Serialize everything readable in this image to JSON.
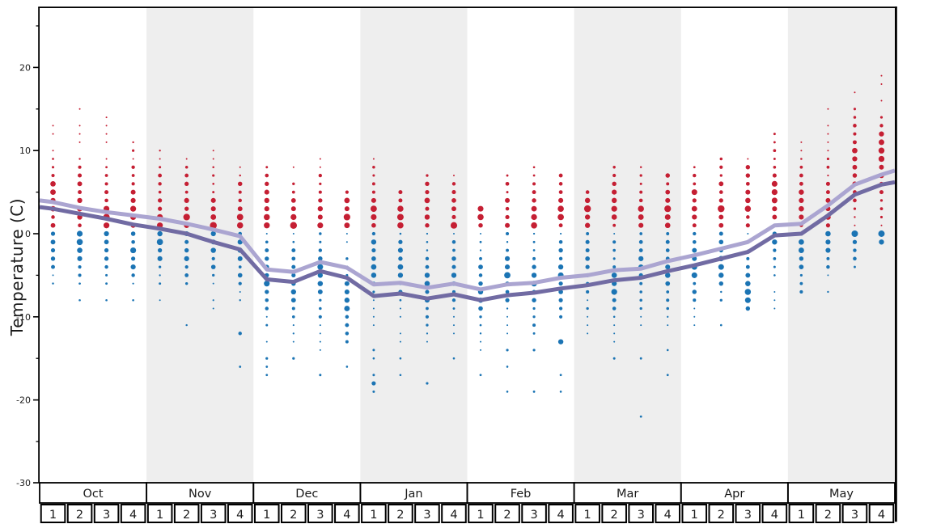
{
  "chart_data": {
    "type": "scatter",
    "title": "",
    "ylabel": "Temperature (C)",
    "legend": "none",
    "grid": "off",
    "y_axis": {
      "min": -30,
      "max": 27,
      "major_ticks": [
        20,
        10,
        0,
        -10,
        -20,
        -30
      ],
      "minor_ticks": [
        25,
        15,
        5,
        -5,
        -15,
        -25
      ],
      "unit": "C"
    },
    "x_axis": {
      "months": [
        "Oct",
        "Nov",
        "Dec",
        "Jan",
        "Feb",
        "Mar",
        "Apr",
        "May"
      ],
      "weeks_per_month": [
        "1",
        "2",
        "3",
        "4"
      ],
      "shaded_months": [
        "Nov",
        "Jan",
        "Mar",
        "May"
      ]
    },
    "colors": {
      "above_freezing_dot": "#c51f33",
      "below_freezing_dot": "#1b74b4",
      "avg_high_line": "#aba5d1",
      "avg_low_line": "#716ba3",
      "month_band": "#eeeeee",
      "axis": "#000000",
      "text": "#1a1a1a"
    },
    "dot_semantics": "one dot per integer degree C recorded that week; dot radius ~ frequency; red = above 0C, blue = 0C and below",
    "line_semantics": "light purple = average high, dark purple = average low",
    "line_edge_values": {
      "left": {
        "high": 4.0,
        "low": 3.2
      },
      "right": {
        "high": 7.6,
        "low": 6.2
      }
    },
    "weeks": [
      {
        "month": "Oct",
        "week": "1",
        "red_max": 13,
        "red_peak": 4,
        "blue_min": -6,
        "blue_peak": 0,
        "blue_outliers": [],
        "avg_high": 3.8,
        "avg_low": 3.0
      },
      {
        "month": "Oct",
        "week": "2",
        "red_max": 15,
        "red_peak": 3,
        "blue_min": -6,
        "blue_peak": -1,
        "blue_outliers": [
          [
            -8,
            1.3
          ]
        ],
        "avg_high": 3.1,
        "avg_low": 2.4
      },
      {
        "month": "Oct",
        "week": "3",
        "red_max": 14,
        "red_peak": 2,
        "blue_min": -6,
        "blue_peak": 0,
        "blue_outliers": [
          [
            -8,
            1.3
          ]
        ],
        "avg_high": 2.6,
        "avg_low": 1.8
      },
      {
        "month": "Oct",
        "week": "4",
        "red_max": 11,
        "red_peak": 3,
        "blue_min": -6,
        "blue_peak": -2,
        "blue_outliers": [
          [
            -8,
            1.3
          ]
        ],
        "avg_high": 2.2,
        "avg_low": 1.1
      },
      {
        "month": "Nov",
        "week": "1",
        "red_max": 10,
        "red_peak": 2,
        "blue_min": -8,
        "blue_peak": -1,
        "blue_outliers": [],
        "avg_high": 1.8,
        "avg_low": 0.6
      },
      {
        "month": "Nov",
        "week": "2",
        "red_max": 9,
        "red_peak": 2,
        "blue_min": -6,
        "blue_peak": -2,
        "blue_outliers": [
          [
            -11,
            1.2
          ]
        ],
        "avg_high": 1.2,
        "avg_low": 0.0
      },
      {
        "month": "Nov",
        "week": "3",
        "red_max": 10,
        "red_peak": 1,
        "blue_min": -9,
        "blue_peak": -1,
        "blue_outliers": [],
        "avg_high": 0.5,
        "avg_low": -1.0
      },
      {
        "month": "Nov",
        "week": "4",
        "red_max": 8,
        "red_peak": 2,
        "blue_min": -8,
        "blue_peak": -2,
        "blue_outliers": [
          [
            -12,
            2.2
          ],
          [
            -16,
            1.4
          ]
        ],
        "avg_high": -0.3,
        "avg_low": -1.9
      },
      {
        "month": "Dec",
        "week": "1",
        "red_max": 8,
        "red_peak": 2,
        "blue_min": -13,
        "blue_peak": -5,
        "blue_outliers": [
          [
            -15,
            1.6
          ],
          [
            -16,
            1.4
          ],
          [
            -17,
            1.4
          ]
        ],
        "avg_high": -4.3,
        "avg_low": -5.5
      },
      {
        "month": "Dec",
        "week": "2",
        "red_max": 8,
        "red_peak": 1,
        "blue_min": -13,
        "blue_peak": -6,
        "blue_outliers": [
          [
            -15,
            1.6
          ]
        ],
        "avg_high": -4.6,
        "avg_low": -5.8
      },
      {
        "month": "Dec",
        "week": "3",
        "red_max": 9,
        "red_peak": 2,
        "blue_min": -14,
        "blue_peak": -5,
        "blue_outliers": [
          [
            -17,
            1.5
          ]
        ],
        "avg_high": -3.4,
        "avg_low": -4.5
      },
      {
        "month": "Dec",
        "week": "4",
        "red_max": 5,
        "red_peak": 2,
        "blue_min": -13,
        "blue_peak": -8,
        "blue_outliers": [
          [
            -16,
            1.3
          ]
        ],
        "avg_high": -4.1,
        "avg_low": -5.3
      },
      {
        "month": "Jan",
        "week": "1",
        "red_max": 9,
        "red_peak": 2,
        "blue_min": -11,
        "blue_peak": -3,
        "blue_outliers": [
          [
            -14,
            1.5
          ],
          [
            -15,
            1.3
          ],
          [
            -17,
            1.5
          ],
          [
            -18,
            2.6
          ],
          [
            -19,
            1.5
          ]
        ],
        "avg_high": -6.1,
        "avg_low": -7.5
      },
      {
        "month": "Jan",
        "week": "2",
        "red_max": 5,
        "red_peak": 2,
        "blue_min": -13,
        "blue_peak": -4,
        "blue_outliers": [
          [
            -15,
            1.3
          ],
          [
            -17,
            1.3
          ]
        ],
        "avg_high": -5.9,
        "avg_low": -7.2
      },
      {
        "month": "Jan",
        "week": "3",
        "red_max": 7,
        "red_peak": 2,
        "blue_min": -13,
        "blue_peak": -6,
        "blue_outliers": [
          [
            -18,
            1.6
          ]
        ],
        "avg_high": -6.5,
        "avg_low": -7.8
      },
      {
        "month": "Jan",
        "week": "4",
        "red_max": 7,
        "red_peak": 1,
        "blue_min": -12,
        "blue_peak": -5,
        "blue_outliers": [
          [
            -15,
            1.3
          ]
        ],
        "avg_high": -6.0,
        "avg_low": -7.3
      },
      {
        "month": "Feb",
        "week": "1",
        "red_max": 3,
        "red_peak": 2,
        "blue_min": -14,
        "blue_peak": -6,
        "blue_outliers": [
          [
            -17,
            1.4
          ]
        ],
        "avg_high": -6.7,
        "avg_low": -8.0
      },
      {
        "month": "Feb",
        "week": "2",
        "red_max": 7,
        "red_peak": 1,
        "blue_min": -12,
        "blue_peak": -5,
        "blue_outliers": [
          [
            -14,
            1.6
          ],
          [
            -16,
            1.3
          ],
          [
            -19,
            1.3
          ]
        ],
        "avg_high": -6.1,
        "avg_low": -7.4
      },
      {
        "month": "Feb",
        "week": "3",
        "red_max": 8,
        "red_peak": 2,
        "blue_min": -12,
        "blue_peak": -6,
        "blue_outliers": [
          [
            -14,
            1.6
          ],
          [
            -19,
            1.4
          ]
        ],
        "avg_high": -5.9,
        "avg_low": -7.1
      },
      {
        "month": "Feb",
        "week": "4",
        "red_max": 7,
        "red_peak": 3,
        "blue_min": -10,
        "blue_peak": -5,
        "blue_outliers": [
          [
            -13,
            3.2
          ],
          [
            -17,
            1.4
          ],
          [
            -19,
            1.3
          ]
        ],
        "avg_high": -5.3,
        "avg_low": -6.6
      },
      {
        "month": "Mar",
        "week": "1",
        "red_max": 5,
        "red_peak": 3,
        "blue_min": -12,
        "blue_peak": -3,
        "blue_outliers": [],
        "avg_high": -5.0,
        "avg_low": -6.2
      },
      {
        "month": "Mar",
        "week": "2",
        "red_max": 8,
        "red_peak": 4,
        "blue_min": -13,
        "blue_peak": -6,
        "blue_outliers": [
          [
            -15,
            1.5
          ]
        ],
        "avg_high": -4.4,
        "avg_low": -5.6
      },
      {
        "month": "Mar",
        "week": "3",
        "red_max": 8,
        "red_peak": 2,
        "blue_min": -11,
        "blue_peak": -4,
        "blue_outliers": [
          [
            -15,
            1.4
          ],
          [
            -22,
            1.4
          ]
        ],
        "avg_high": -4.2,
        "avg_low": -5.3
      },
      {
        "month": "Mar",
        "week": "4",
        "red_max": 7,
        "red_peak": 3,
        "blue_min": -11,
        "blue_peak": -4,
        "blue_outliers": [
          [
            -14,
            1.3
          ],
          [
            -17,
            1.4
          ]
        ],
        "avg_high": -3.3,
        "avg_low": -4.5
      },
      {
        "month": "Apr",
        "week": "1",
        "red_max": 8,
        "red_peak": 3,
        "blue_min": -11,
        "blue_peak": -4,
        "blue_outliers": [],
        "avg_high": -2.6,
        "avg_low": -3.8
      },
      {
        "month": "Apr",
        "week": "2",
        "red_max": 9,
        "red_peak": 3,
        "blue_min": -8,
        "blue_peak": -3,
        "blue_outliers": [
          [
            -11,
            1.3
          ]
        ],
        "avg_high": -1.8,
        "avg_low": -3.0
      },
      {
        "month": "Apr",
        "week": "3",
        "red_max": 9,
        "red_peak": 4,
        "blue_min": -9,
        "blue_peak": -7,
        "blue_outliers": [],
        "avg_high": -1.0,
        "avg_low": -2.2
      },
      {
        "month": "Apr",
        "week": "4",
        "red_max": 12,
        "red_peak": 5,
        "blue_min": -9,
        "blue_peak": 0,
        "blue_outliers": [],
        "avg_high": 1.0,
        "avg_low": -0.2
      },
      {
        "month": "May",
        "week": "1",
        "red_max": 11,
        "red_peak": 3,
        "blue_min": -7,
        "blue_peak": -2,
        "blue_outliers": [],
        "avg_high": 1.2,
        "avg_low": 0.0
      },
      {
        "month": "May",
        "week": "2",
        "red_max": 15,
        "red_peak": 2,
        "blue_min": -5,
        "blue_peak": 0,
        "blue_outliers": [
          [
            -7,
            1.2
          ]
        ],
        "avg_high": 3.4,
        "avg_low": 2.2
      },
      {
        "month": "May",
        "week": "3",
        "red_max": 17,
        "red_peak": 8,
        "blue_min": -4,
        "blue_peak": 0,
        "blue_outliers": [],
        "avg_high": 5.9,
        "avg_low": 4.7
      },
      {
        "month": "May",
        "week": "4",
        "red_max": 19,
        "red_peak": 9,
        "blue_min": -1,
        "blue_peak": 0,
        "blue_outliers": [],
        "avg_high": 7.1,
        "avg_low": 5.9
      }
    ]
  }
}
